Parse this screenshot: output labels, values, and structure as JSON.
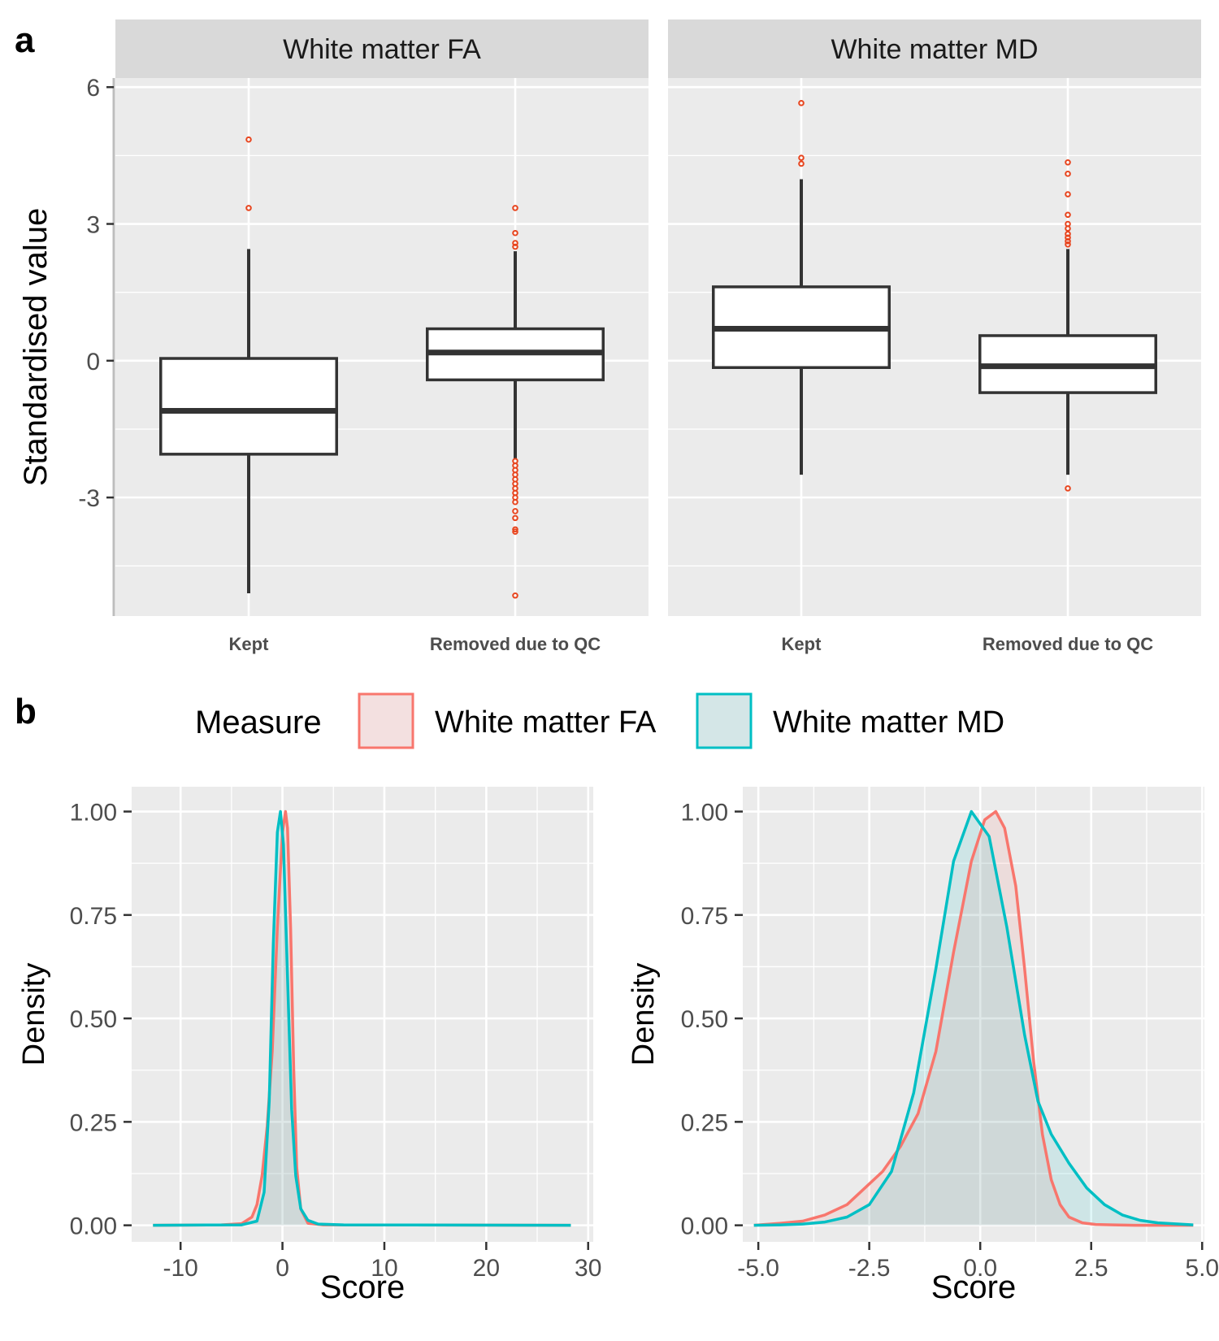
{
  "panel_labels": {
    "a": "a",
    "b": "b"
  },
  "colors": {
    "panel_bg": "#EBEBEB",
    "strip_bg": "#D9D9D9",
    "grid": "#FFFFFF",
    "box_stroke": "#333333",
    "outlier": "#E8451E",
    "fa": "#F8766D",
    "md": "#00BFC4",
    "fa_fill": "#F3E0E0",
    "md_fill": "#D4E6E7"
  },
  "legend": {
    "title": "Measure",
    "items": [
      {
        "label": "White matter FA",
        "color": "#F8766D",
        "fill": "#F3E0E0"
      },
      {
        "label": "White matter MD",
        "color": "#00BFC4",
        "fill": "#D4E6E7"
      }
    ]
  },
  "chart_data": [
    {
      "type": "box",
      "ylabel": "Standardised value",
      "ylim": [
        -5.6,
        6.2
      ],
      "yticks": [
        {
          "value": 6,
          "label": "6"
        },
        {
          "value": 3,
          "label": "3"
        },
        {
          "value": 0,
          "label": "0"
        },
        {
          "value": -3,
          "label": "-3"
        }
      ],
      "categories": [
        "Kept",
        "Removed due to QC"
      ],
      "facets": [
        {
          "title": "White matter FA",
          "boxes": [
            {
              "category": "Kept",
              "lower_whisker": -5.1,
              "q1": -2.05,
              "median": -1.1,
              "q3": 0.05,
              "upper_whisker": 2.45,
              "outliers": [
                4.85,
                3.35
              ]
            },
            {
              "category": "Removed due to QC",
              "lower_whisker": -2.15,
              "q1": -0.42,
              "median": 0.18,
              "q3": 0.7,
              "upper_whisker": 2.4,
              "outliers": [
                3.35,
                2.8,
                2.58,
                2.5,
                -2.2,
                -2.3,
                -2.4,
                -2.5,
                -2.6,
                -2.7,
                -2.8,
                -2.9,
                -3.0,
                -3.1,
                -3.3,
                -3.45,
                -3.7,
                -3.75,
                -5.15
              ]
            }
          ]
        },
        {
          "title": "White matter MD",
          "boxes": [
            {
              "category": "Kept",
              "lower_whisker": -2.5,
              "q1": -0.15,
              "median": 0.7,
              "q3": 1.62,
              "upper_whisker": 3.98,
              "outliers": [
                5.65,
                4.45,
                4.32
              ]
            },
            {
              "category": "Removed due to QC",
              "lower_whisker": -2.5,
              "q1": -0.7,
              "median": -0.12,
              "q3": 0.55,
              "upper_whisker": 2.45,
              "outliers": [
                4.35,
                4.1,
                3.65,
                3.2,
                3.0,
                2.9,
                2.78,
                2.7,
                2.62,
                2.55,
                -2.8
              ]
            }
          ]
        }
      ]
    },
    {
      "type": "area",
      "xlabel": "Score",
      "ylabel": "Density",
      "xlim": [
        -14.8,
        30.5
      ],
      "ylim": [
        -0.04,
        1.06
      ],
      "xticks": [
        {
          "value": -10,
          "label": "-10"
        },
        {
          "value": 0,
          "label": "0"
        },
        {
          "value": 10,
          "label": "10"
        },
        {
          "value": 20,
          "label": "20"
        },
        {
          "value": 30,
          "label": "30"
        }
      ],
      "yticks": [
        {
          "value": 1.0,
          "label": "1.00"
        },
        {
          "value": 0.75,
          "label": "0.75"
        },
        {
          "value": 0.5,
          "label": "0.50"
        },
        {
          "value": 0.25,
          "label": "0.25"
        },
        {
          "value": 0.0,
          "label": "0.00"
        }
      ],
      "series": [
        {
          "name": "White matter FA",
          "x": [
            -12.7,
            -6,
            -4,
            -3,
            -2.5,
            -2,
            -1.5,
            -1,
            -0.5,
            0,
            0.3,
            0.5,
            0.8,
            1.1,
            1.4,
            1.8,
            2.5,
            4,
            28.3
          ],
          "y": [
            0,
            0.001,
            0.004,
            0.02,
            0.05,
            0.12,
            0.24,
            0.42,
            0.72,
            0.95,
            1.0,
            0.96,
            0.72,
            0.38,
            0.14,
            0.04,
            0.005,
            0.001,
            0
          ]
        },
        {
          "name": "White matter MD",
          "x": [
            -12.7,
            -4,
            -2.5,
            -1.8,
            -1.3,
            -0.9,
            -0.5,
            -0.2,
            0.1,
            0.5,
            0.9,
            1.3,
            1.8,
            2.5,
            3.5,
            6,
            28.3
          ],
          "y": [
            0,
            0.001,
            0.01,
            0.08,
            0.3,
            0.68,
            0.95,
            1.0,
            0.92,
            0.6,
            0.28,
            0.12,
            0.04,
            0.012,
            0.003,
            0.001,
            0
          ]
        }
      ]
    },
    {
      "type": "area",
      "xlabel": "Score",
      "ylabel": "Density",
      "xlim": [
        -5.35,
        5.05
      ],
      "ylim": [
        -0.04,
        1.06
      ],
      "xticks": [
        {
          "value": -5.0,
          "label": "-5.0"
        },
        {
          "value": -2.5,
          "label": "-2.5"
        },
        {
          "value": 0.0,
          "label": "0.0"
        },
        {
          "value": 2.5,
          "label": "2.5"
        },
        {
          "value": 5.0,
          "label": "5.0"
        }
      ],
      "yticks": [
        {
          "value": 1.0,
          "label": "1.00"
        },
        {
          "value": 0.75,
          "label": "0.75"
        },
        {
          "value": 0.5,
          "label": "0.50"
        },
        {
          "value": 0.25,
          "label": "0.25"
        },
        {
          "value": 0.0,
          "label": "0.00"
        }
      ],
      "series": [
        {
          "name": "White matter FA",
          "x": [
            -5.1,
            -4.5,
            -4.0,
            -3.5,
            -3.0,
            -2.6,
            -2.2,
            -1.8,
            -1.4,
            -1.0,
            -0.6,
            -0.2,
            0.1,
            0.35,
            0.55,
            0.8,
            1.0,
            1.2,
            1.4,
            1.6,
            1.8,
            2.0,
            2.3,
            2.6,
            3.0,
            3.5,
            4.0,
            4.8
          ],
          "y": [
            0,
            0.005,
            0.01,
            0.025,
            0.05,
            0.09,
            0.13,
            0.19,
            0.27,
            0.42,
            0.66,
            0.88,
            0.98,
            1.0,
            0.96,
            0.82,
            0.62,
            0.4,
            0.22,
            0.11,
            0.05,
            0.02,
            0.006,
            0.002,
            0.001,
            0,
            0,
            0
          ]
        },
        {
          "name": "White matter MD",
          "x": [
            -5.1,
            -4.5,
            -4.0,
            -3.5,
            -3.0,
            -2.5,
            -2.0,
            -1.5,
            -1.0,
            -0.6,
            -0.2,
            0.2,
            0.6,
            1.0,
            1.3,
            1.6,
            2.0,
            2.4,
            2.8,
            3.2,
            3.6,
            4.0,
            4.8
          ],
          "y": [
            0,
            0.001,
            0.003,
            0.008,
            0.02,
            0.05,
            0.13,
            0.32,
            0.62,
            0.88,
            1.0,
            0.94,
            0.72,
            0.46,
            0.3,
            0.22,
            0.15,
            0.09,
            0.05,
            0.025,
            0.012,
            0.006,
            0.001
          ]
        }
      ]
    }
  ]
}
